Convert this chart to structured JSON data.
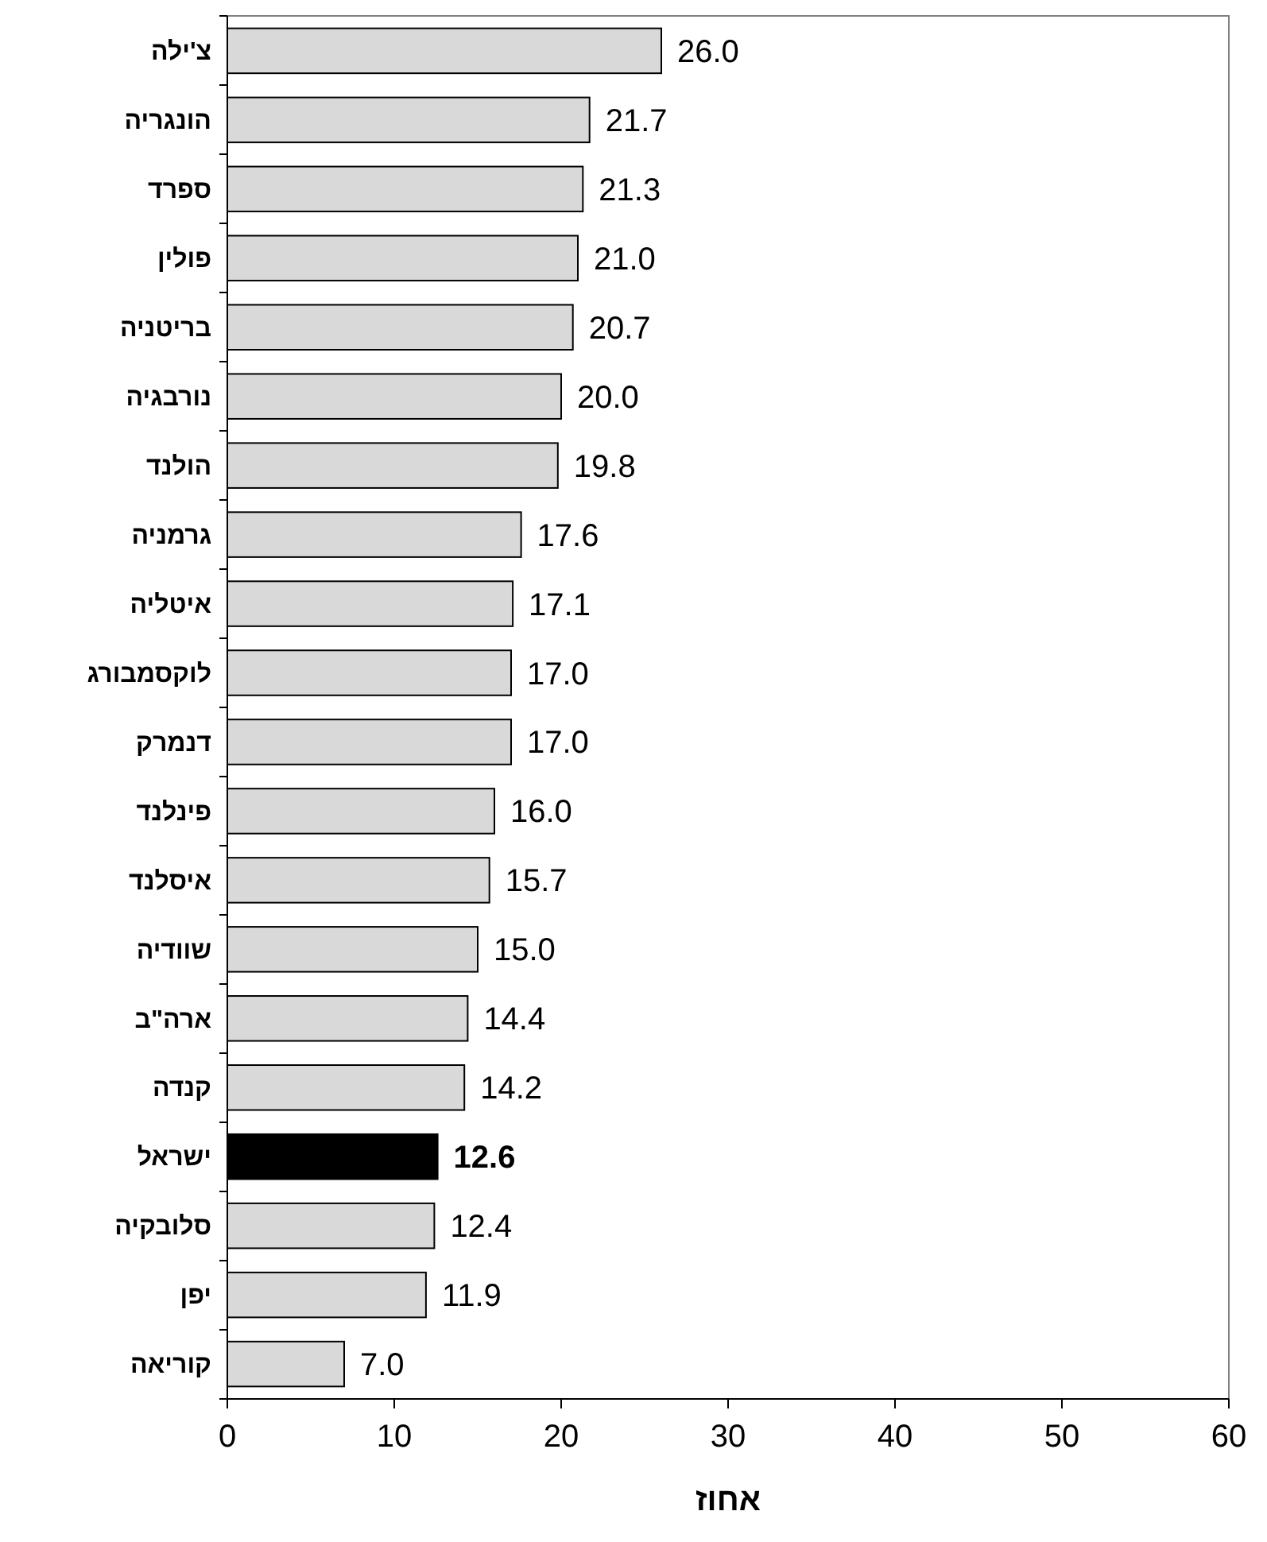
{
  "chart_data": {
    "type": "bar",
    "orientation": "horizontal",
    "xlabel": "אחוז",
    "categories": [
      "צ'ילה",
      "הונגריה",
      "ספרד",
      "פולין",
      "בריטניה",
      "נורבגיה",
      "הולנד",
      "גרמניה",
      "איטליה",
      "לוקסמבורג",
      "דנמרק",
      "פינלנד",
      "איסלנד",
      "שוודיה",
      "ארה\"ב",
      "קנדה",
      "ישראל",
      "סלובקיה",
      "יפן",
      "קוריאה"
    ],
    "values": [
      26.0,
      21.7,
      21.3,
      21.0,
      20.7,
      20.0,
      19.8,
      17.6,
      17.1,
      17.0,
      17.0,
      16.0,
      15.7,
      15.0,
      14.4,
      14.2,
      12.6,
      12.4,
      11.9,
      7.0
    ],
    "colors": [
      "#d9d9d9",
      "#d9d9d9",
      "#d9d9d9",
      "#d9d9d9",
      "#d9d9d9",
      "#d9d9d9",
      "#d9d9d9",
      "#d9d9d9",
      "#d9d9d9",
      "#d9d9d9",
      "#d9d9d9",
      "#d9d9d9",
      "#d9d9d9",
      "#d9d9d9",
      "#d9d9d9",
      "#d9d9d9",
      "#000000",
      "#d9d9d9",
      "#d9d9d9",
      "#d9d9d9"
    ],
    "value_labels": [
      "26.0",
      "21.7",
      "21.3",
      "21.0",
      "20.7",
      "20.0",
      "19.8",
      "17.6",
      "17.1",
      "17.0",
      "17.0",
      "16.0",
      "15.7",
      "15.0",
      "14.4",
      "14.2",
      "12.6",
      "12.4",
      "11.9",
      "7.0"
    ],
    "xlim": [
      0,
      60
    ],
    "xticks": [
      0,
      10,
      20,
      30,
      40,
      50,
      60
    ],
    "grid": false
  }
}
